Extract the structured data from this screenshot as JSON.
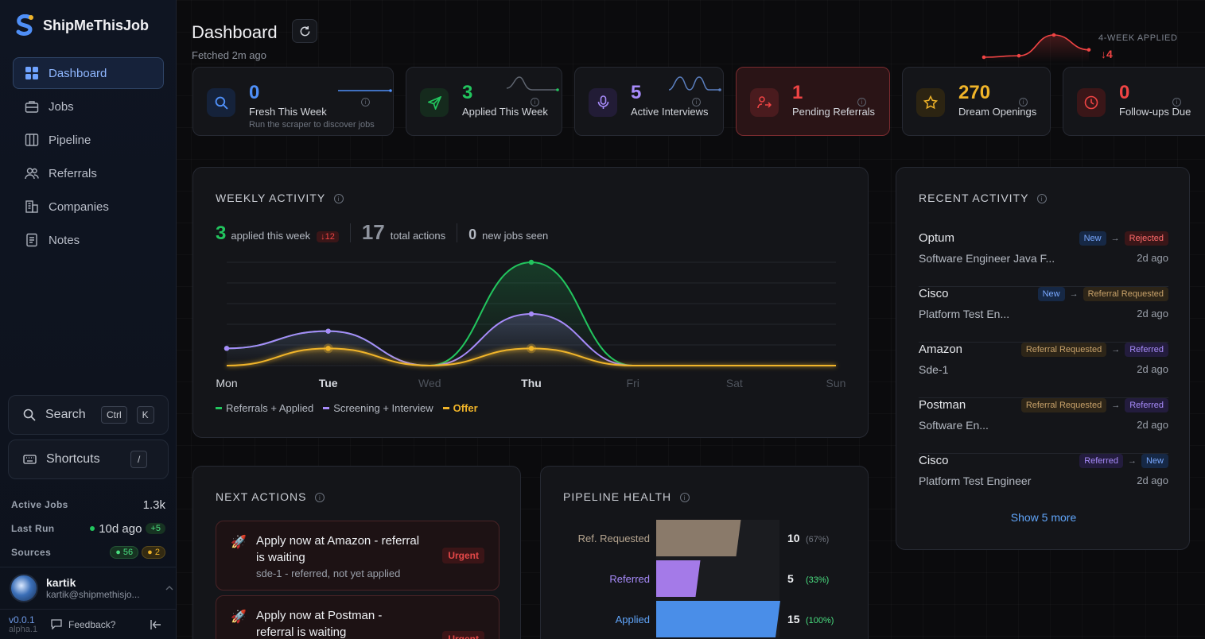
{
  "app": {
    "name": "ShipMeThisJob"
  },
  "sidebar": {
    "items": [
      {
        "label": "Dashboard",
        "icon": "grid-icon"
      },
      {
        "label": "Jobs",
        "icon": "briefcase-icon"
      },
      {
        "label": "Pipeline",
        "icon": "columns-icon"
      },
      {
        "label": "Referrals",
        "icon": "users-icon"
      },
      {
        "label": "Companies",
        "icon": "building-icon"
      },
      {
        "label": "Notes",
        "icon": "note-icon"
      }
    ],
    "search": {
      "label": "Search",
      "keys": [
        "Ctrl",
        "K"
      ]
    },
    "shortcuts": {
      "label": "Shortcuts",
      "key": "/"
    },
    "stats": {
      "active_jobs_label": "Active Jobs",
      "active_jobs": "1.3k",
      "last_run_label": "Last Run",
      "last_run": "10d ago",
      "last_run_delta": "+5",
      "sources_label": "Sources",
      "sources_green": "56",
      "sources_yellow": "2"
    },
    "user": {
      "name": "kartik",
      "email": "kartik@shipmethisjo..."
    },
    "footer": {
      "version": "v0.0.1",
      "channel": "alpha.1",
      "feedback": "Feedback?"
    }
  },
  "header": {
    "title": "Dashboard",
    "fetched": "Fetched 2m ago",
    "four_week_label": "4-WEEK APPLIED",
    "four_week_delta": "↓4",
    "four_week_points": [
      0,
      0.2,
      3,
      1
    ]
  },
  "kpis": [
    {
      "value": "0",
      "label": "Fresh This Week",
      "sub": "Run the scraper to discover jobs",
      "color": "#4f8ff7",
      "icon": "search-icon"
    },
    {
      "value": "3",
      "label": "Applied This Week",
      "color": "#22c55e",
      "icon": "send-icon"
    },
    {
      "value": "5",
      "label": "Active Interviews",
      "color": "#a78bfa",
      "icon": "microphone-icon"
    },
    {
      "value": "1",
      "label": "Pending Referrals",
      "color": "#ef4444",
      "icon": "user-arrow-icon"
    },
    {
      "value": "270",
      "label": "Dream Openings",
      "color": "#f0b429",
      "icon": "star-icon"
    },
    {
      "value": "0",
      "label": "Follow-ups Due",
      "color": "#ef4444",
      "icon": "clock-icon"
    }
  ],
  "weekly": {
    "title": "WEEKLY ACTIVITY",
    "applied": "3",
    "applied_label": "applied this week",
    "applied_delta": "↓12",
    "total": "17",
    "total_label": "total actions",
    "new_jobs": "0",
    "new_jobs_label": "new jobs seen"
  },
  "chart_data": {
    "type": "line",
    "categories": [
      "Mon",
      "Tue",
      "Wed",
      "Thu",
      "Fri",
      "Sat",
      "Sun"
    ],
    "series": [
      {
        "name": "Referrals + Applied",
        "color": "#22c55e",
        "values": [
          1,
          2,
          0,
          6,
          0,
          0,
          0
        ]
      },
      {
        "name": "Screening + Interview",
        "color": "#a78bfa",
        "values": [
          1,
          2,
          0,
          3,
          0,
          0,
          0
        ]
      },
      {
        "name": "Offer",
        "color": "#f0b429",
        "values": [
          0,
          1,
          0,
          1,
          0,
          0,
          0
        ]
      }
    ],
    "ylim": [
      0,
      6
    ],
    "grid": true,
    "legend": "bottom-left"
  },
  "recent": {
    "title": "RECENT ACTIVITY",
    "items": [
      {
        "company": "Optum",
        "role": "Software Engineer Java F...",
        "from": "New",
        "to": "Rejected",
        "time": "2d ago"
      },
      {
        "company": "Cisco",
        "role": "Platform Test En...",
        "from": "New",
        "to": "Referral Requested",
        "time": "2d ago"
      },
      {
        "company": "Amazon",
        "role": "Sde-1",
        "from": "Referral Requested",
        "to": "Referred",
        "time": "2d ago"
      },
      {
        "company": "Postman",
        "role": "Software En...",
        "from": "Referral Requested",
        "to": "Referred",
        "time": "2d ago"
      },
      {
        "company": "Cisco",
        "role": "Platform Test Engineer",
        "from": "Referred",
        "to": "New",
        "time": "2d ago"
      }
    ],
    "show_more": "Show 5 more"
  },
  "next_actions": {
    "title": "NEXT ACTIONS",
    "items": [
      {
        "line1": "Apply now at Amazon - referral",
        "line2": "is waiting",
        "sub": "sde-1 - referred, not yet applied",
        "badge": "Urgent"
      },
      {
        "line1": "Apply now at Postman -",
        "line2": "referral is waiting",
        "badge": "Urgent"
      }
    ]
  },
  "pipeline": {
    "title": "PIPELINE HEALTH",
    "rows": [
      {
        "label": "Ref. Requested",
        "value": "10",
        "pct": "(67%)",
        "fraction": 0.67,
        "color": "#8a7a6a",
        "label_color": "#b5a48f",
        "pct_color": "#6f747e"
      },
      {
        "label": "Referred",
        "value": "5",
        "pct": "(33%)",
        "fraction": 0.33,
        "color": "#a47ae8",
        "label_color": "#a78bfa",
        "pct_color": "#4ade80"
      },
      {
        "label": "Applied",
        "value": "15",
        "pct": "(100%)",
        "fraction": 1.0,
        "color": "#4a8ee8",
        "label_color": "#60a5fa",
        "pct_color": "#4ade80"
      }
    ]
  }
}
